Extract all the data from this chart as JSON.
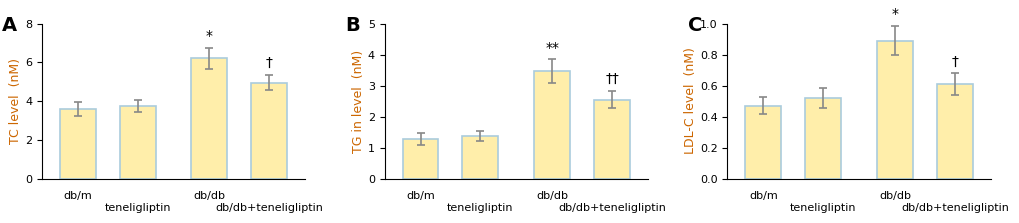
{
  "panels": [
    {
      "label": "A",
      "ylabel": "TC level  (nM)",
      "ylim": [
        0,
        8
      ],
      "yticks": [
        0,
        2,
        4,
        6,
        8
      ],
      "values": [
        3.6,
        3.75,
        6.2,
        4.95
      ],
      "errors": [
        0.35,
        0.3,
        0.55,
        0.4
      ],
      "annotations": [
        "",
        "",
        "*",
        "†"
      ],
      "annot_positions": [
        null,
        null,
        "top",
        "top"
      ]
    },
    {
      "label": "B",
      "ylabel": "TG in level  (nM)",
      "ylim": [
        0,
        5
      ],
      "yticks": [
        0,
        1,
        2,
        3,
        4,
        5
      ],
      "values": [
        1.28,
        1.37,
        3.47,
        2.55
      ],
      "errors": [
        0.2,
        0.15,
        0.38,
        0.28
      ],
      "annotations": [
        "",
        "",
        "**",
        "††"
      ],
      "annot_positions": [
        null,
        null,
        "top",
        "top"
      ]
    },
    {
      "label": "C",
      "ylabel": "LDL-C level  (nM)",
      "ylim": [
        0,
        1
      ],
      "yticks": [
        0,
        0.2,
        0.4,
        0.6,
        0.8,
        1.0
      ],
      "values": [
        0.47,
        0.52,
        0.89,
        0.61
      ],
      "errors": [
        0.055,
        0.065,
        0.095,
        0.07
      ],
      "annotations": [
        "",
        "",
        "*",
        "†"
      ],
      "annot_positions": [
        null,
        null,
        "top",
        "top"
      ]
    }
  ],
  "x_groups": [
    "db/m\nteneligliptin",
    "db/db\ndb/db+teneligliptin"
  ],
  "x_tick_labels_line1": [
    "db/m",
    "",
    "db/db",
    ""
  ],
  "x_tick_labels_line2": [
    "",
    "teneligliptin",
    "",
    "db/db+teneligliptin"
  ],
  "bar_color": "#FFEEAA",
  "bar_edge_color": "#AACCDD",
  "bar_width": 0.6,
  "x_positions": [
    0,
    1,
    2.2,
    3.2
  ],
  "label_fontsize": 10,
  "tick_fontsize": 8,
  "annot_fontsize": 10,
  "panel_label_fontsize": 14,
  "ylabel_fontsize": 9,
  "background_color": "#ffffff",
  "axis_label_color": "#CC6600"
}
